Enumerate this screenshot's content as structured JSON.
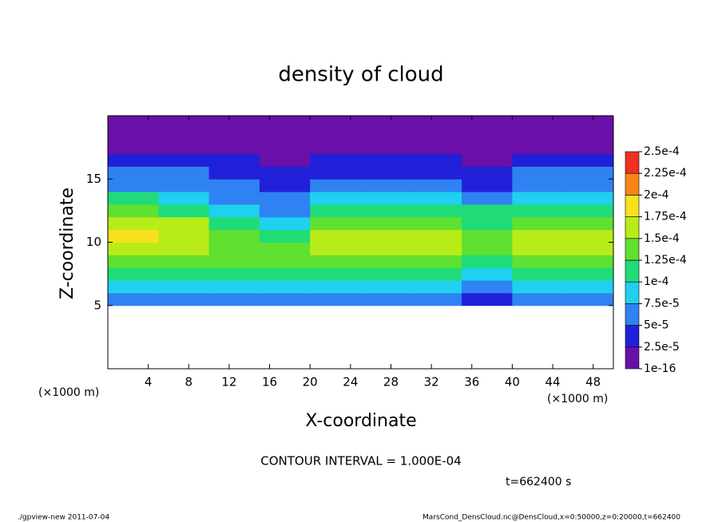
{
  "chart_data": {
    "type": "contour",
    "title": "density of cloud",
    "xlabel": "X-coordinate",
    "ylabel": "Z-coordinate",
    "x_unit_label": "(×1000 m)",
    "xlim": [
      0,
      50
    ],
    "xticks": [
      4,
      8,
      12,
      16,
      20,
      24,
      28,
      32,
      36,
      40,
      44,
      48
    ],
    "ylim": [
      0,
      20
    ],
    "yticks": [
      5,
      10,
      15
    ],
    "x": [
      2.5,
      7.5,
      12.5,
      17.5,
      22.5,
      27.5,
      32.5,
      37.5,
      42.5,
      47.5
    ],
    "y": [
      5.5,
      6.5,
      7.5,
      8.5,
      9.5,
      10.5,
      11.5,
      12.5,
      13.5,
      14.5,
      15.5,
      16.5,
      17.5,
      18.5,
      19.5
    ],
    "z": [
      [
        5e-05,
        5e-05,
        5e-05,
        5e-05,
        5e-05,
        5e-05,
        5e-05,
        4e-05,
        5e-05,
        5e-05
      ],
      [
        8e-05,
        8e-05,
        8e-05,
        8e-05,
        8e-05,
        8e-05,
        8e-05,
        7e-05,
        8e-05,
        8e-05
      ],
      [
        0.00011,
        0.00011,
        0.0001,
        0.00011,
        0.00011,
        0.00011,
        0.0001,
        9e-05,
        0.0001,
        0.00011
      ],
      [
        0.00014,
        0.00014,
        0.00013,
        0.00013,
        0.00014,
        0.00014,
        0.00013,
        0.00012,
        0.00013,
        0.00014
      ],
      [
        0.00017,
        0.00016,
        0.00014,
        0.00013,
        0.00016,
        0.00016,
        0.00015,
        0.00013,
        0.00015,
        0.00016
      ],
      [
        0.00018,
        0.00017,
        0.00014,
        0.00011,
        0.00016,
        0.00016,
        0.00015,
        0.00013,
        0.00015,
        0.00016
      ],
      [
        0.00016,
        0.00015,
        0.00012,
        8e-05,
        0.00013,
        0.00014,
        0.00013,
        0.00012,
        0.00013,
        0.00014
      ],
      [
        0.00013,
        0.00012,
        9e-05,
        6e-05,
        0.0001,
        0.00011,
        0.00011,
        0.0001,
        0.00011,
        0.00012
      ],
      [
        0.0001,
        9e-05,
        7e-05,
        5e-05,
        8e-05,
        8e-05,
        8e-05,
        7e-05,
        8e-05,
        9e-05
      ],
      [
        7e-05,
        6e-05,
        5e-05,
        4e-05,
        6e-05,
        6e-05,
        6e-05,
        4e-05,
        6e-05,
        7e-05
      ],
      [
        5e-05,
        5e-05,
        4e-05,
        3e-05,
        4e-05,
        4e-05,
        4e-05,
        3e-05,
        5e-05,
        5e-05
      ],
      [
        3e-05,
        3e-05,
        3e-05,
        2e-05,
        3e-05,
        3e-05,
        3e-05,
        2e-05,
        3e-05,
        3e-05
      ],
      [
        2e-05,
        2e-05,
        2e-05,
        1.5e-05,
        2e-05,
        2e-05,
        2e-05,
        1.5e-05,
        2e-05,
        2e-05
      ],
      [
        1e-05,
        1e-05,
        1e-05,
        1e-05,
        1e-05,
        1e-05,
        1e-05,
        1e-05,
        1e-05,
        1e-05
      ],
      [
        5e-06,
        5e-06,
        5e-06,
        5e-06,
        5e-06,
        5e-06,
        5e-06,
        5e-06,
        5e-06,
        5e-06
      ]
    ],
    "levels": [
      {
        "value": 1e-16,
        "label": "1e-16"
      },
      {
        "value": 2.5e-05,
        "label": "2.5e-5"
      },
      {
        "value": 5e-05,
        "label": "5e-5"
      },
      {
        "value": 7.5e-05,
        "label": "7.5e-5"
      },
      {
        "value": 0.0001,
        "label": "1e-4"
      },
      {
        "value": 0.000125,
        "label": "1.25e-4"
      },
      {
        "value": 0.00015,
        "label": "1.5e-4"
      },
      {
        "value": 0.000175,
        "label": "1.75e-4"
      },
      {
        "value": 0.0002,
        "label": "2e-4"
      },
      {
        "value": 0.000225,
        "label": "2.25e-4"
      },
      {
        "value": 0.00025,
        "label": "2.5e-4"
      }
    ],
    "colors": [
      "#6a10a8",
      "#2020d8",
      "#2f82f2",
      "#20d0f0",
      "#20dc78",
      "#60e030",
      "#b8ec18",
      "#f8e020",
      "#f88418",
      "#f03020"
    ],
    "contour_interval": "CONTOUR INTERVAL = 1.000E-04",
    "time_label": "t=662400 s",
    "footer_left": "./gpview-new  2011-07-04",
    "footer_right": "MarsCond_DensCloud.nc@DensCloud,x=0:50000,z=0:20000,t=662400"
  }
}
